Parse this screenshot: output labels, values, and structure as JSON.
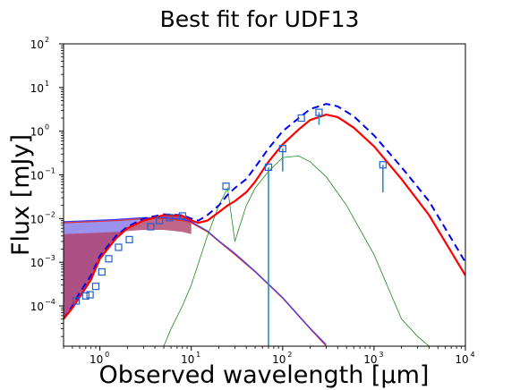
{
  "chart_data": {
    "type": "line",
    "title": "Best fit for UDF13",
    "xlabel": "Observed wavelength [μm]",
    "ylabel": "Flux [mJy]",
    "xscale": "log",
    "yscale": "log",
    "xlim": [
      0.4,
      10000
    ],
    "ylim": [
      1.2e-05,
      100
    ],
    "x_ticks": [
      {
        "base": "10",
        "exp": "0",
        "value": 1
      },
      {
        "base": "10",
        "exp": "1",
        "value": 10
      },
      {
        "base": "10",
        "exp": "2",
        "value": 100
      },
      {
        "base": "10",
        "exp": "3",
        "value": 1000
      },
      {
        "base": "10",
        "exp": "4",
        "value": 10000
      }
    ],
    "y_ticks": [
      {
        "base": "10",
        "exp": "−4",
        "value": 0.0001
      },
      {
        "base": "10",
        "exp": "−3",
        "value": 0.001
      },
      {
        "base": "10",
        "exp": "−2",
        "value": 0.01
      },
      {
        "base": "10",
        "exp": "−1",
        "value": 0.1
      },
      {
        "base": "10",
        "exp": "0",
        "value": 1
      },
      {
        "base": "10",
        "exp": "1",
        "value": 10
      },
      {
        "base": "10",
        "exp": "2",
        "value": 100
      }
    ],
    "grid": false,
    "colors": {
      "total_attenuated": "#ff0000",
      "total_intrinsic": "#0000ee",
      "stellar_attenuated": "#e8332a",
      "stellar_intrinsic": "#3a3aff",
      "fill_unattenuated": "#7a6ee8",
      "fill_attenuated": "#b0406a",
      "dust": "#1a8a1a",
      "nebular": "#ff0000",
      "observations": "#1f5fcf",
      "errorbars": "#2f8fc0"
    },
    "series": [
      {
        "style": "solid-red",
        "x": [
          0.4,
          0.5,
          0.6,
          0.8,
          1.0,
          1.5,
          2,
          3,
          5,
          8,
          10,
          12,
          15,
          20,
          25,
          30,
          40,
          50,
          70,
          100,
          150,
          200,
          300,
          400,
          600,
          1000,
          2000,
          4000,
          10000
        ],
        "y": [
          5e-05,
          9e-05,
          0.00016,
          0.0004,
          0.0012,
          0.0035,
          0.006,
          0.009,
          0.012,
          0.0115,
          0.009,
          0.008,
          0.009,
          0.014,
          0.02,
          0.025,
          0.04,
          0.07,
          0.2,
          0.5,
          1.1,
          1.8,
          2.4,
          2.1,
          1.2,
          0.45,
          0.08,
          0.012,
          0.0005
        ]
      },
      {
        "style": "dashed-blue",
        "x": [
          0.4,
          0.5,
          0.6,
          0.8,
          1.0,
          1.5,
          2,
          3,
          5,
          8,
          10,
          12,
          15,
          20,
          25,
          30,
          40,
          50,
          70,
          100,
          150,
          200,
          300,
          400,
          600,
          1000,
          2000,
          4000,
          10000
        ],
        "y": [
          5e-05,
          0.0001,
          0.0002,
          0.0005,
          0.0014,
          0.004,
          0.0065,
          0.01,
          0.0125,
          0.012,
          0.01,
          0.009,
          0.012,
          0.02,
          0.035,
          0.05,
          0.08,
          0.15,
          0.4,
          1.0,
          2.0,
          3.2,
          4.2,
          3.7,
          2.2,
          0.8,
          0.15,
          0.025,
          0.001
        ]
      },
      {
        "style": "dust-green",
        "x": [
          5,
          6,
          8,
          10,
          15,
          20,
          25,
          30,
          40,
          50,
          70,
          100,
          150,
          200,
          300,
          500,
          1000,
          2000,
          3000,
          4000
        ],
        "y": [
          1.2e-05,
          3e-05,
          0.0001,
          0.0003,
          0.004,
          0.02,
          0.05,
          0.003,
          0.02,
          0.05,
          0.12,
          0.25,
          0.27,
          0.2,
          0.09,
          0.02,
          0.0015,
          5e-05,
          2e-05,
          1.2e-05
        ]
      },
      {
        "style": "stellar-old",
        "x": [
          0.4,
          0.8,
          1.5,
          3,
          5,
          8,
          10,
          15,
          20,
          30,
          50,
          100,
          200,
          300
        ],
        "y": [
          0.008,
          0.0085,
          0.009,
          0.01,
          0.01,
          0.009,
          0.008,
          0.005,
          0.003,
          0.0015,
          0.0006,
          0.00015,
          3e-05,
          1.2e-05
        ]
      },
      {
        "style": "stellar-young",
        "x": [
          0.4,
          0.8,
          1.5,
          3,
          5,
          8,
          10,
          15,
          20,
          30,
          50,
          100,
          200,
          300
        ],
        "y": [
          0.0085,
          0.009,
          0.0095,
          0.0105,
          0.0105,
          0.0095,
          0.0085,
          0.0052,
          0.0031,
          0.0016,
          0.00062,
          0.000155,
          3.1e-05,
          1.3e-05
        ]
      }
    ],
    "observations": [
      {
        "x": 0.55,
        "y": 0.00013
      },
      {
        "x": 0.7,
        "y": 0.00017
      },
      {
        "x": 0.78,
        "y": 0.00018
      },
      {
        "x": 0.9,
        "y": 0.00028
      },
      {
        "x": 1.05,
        "y": 0.0006
      },
      {
        "x": 1.25,
        "y": 0.0012
      },
      {
        "x": 1.6,
        "y": 0.0022
      },
      {
        "x": 2.1,
        "y": 0.0033
      },
      {
        "x": 3.6,
        "y": 0.0065
      },
      {
        "x": 4.5,
        "y": 0.009
      },
      {
        "x": 5.8,
        "y": 0.0105
      },
      {
        "x": 8.0,
        "y": 0.0115
      },
      {
        "x": 24,
        "y": 0.055
      },
      {
        "x": 70,
        "y": 0.15,
        "err_low": 1.2e-05
      },
      {
        "x": 100,
        "y": 0.4,
        "err_low": 0.12
      },
      {
        "x": 160,
        "y": 2.0
      },
      {
        "x": 250,
        "y": 2.7,
        "err_low": 1.4
      },
      {
        "x": 1250,
        "y": 0.17,
        "err_low": 0.04
      }
    ]
  }
}
